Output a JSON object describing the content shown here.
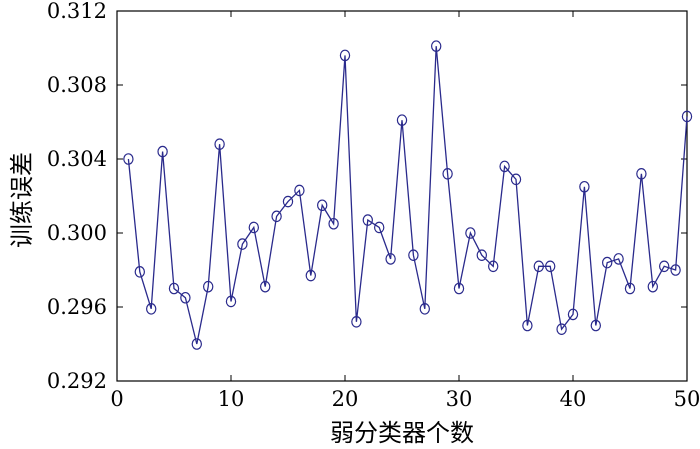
{
  "chart_data": {
    "type": "line",
    "xlabel": "弱分类器个数",
    "ylabel": "训练误差",
    "xlim": [
      0,
      50
    ],
    "ylim": [
      0.292,
      0.312
    ],
    "x_ticks": [
      0,
      10,
      20,
      30,
      40,
      50
    ],
    "x_tick_labels": [
      "0",
      "10",
      "20",
      "30",
      "40",
      "50"
    ],
    "y_ticks": [
      0.292,
      0.296,
      0.3,
      0.304,
      0.308,
      0.312
    ],
    "y_tick_labels": [
      "0.292",
      "0.296",
      "0.300",
      "0.304",
      "0.308",
      "0.312"
    ],
    "grid": false,
    "marker": "circle",
    "line_color": "#2a2a8c",
    "x": [
      1,
      2,
      3,
      4,
      5,
      6,
      7,
      8,
      9,
      10,
      11,
      12,
      13,
      14,
      15,
      16,
      17,
      18,
      19,
      20,
      21,
      22,
      23,
      24,
      25,
      26,
      27,
      28,
      29,
      30,
      31,
      32,
      33,
      34,
      35,
      36,
      37,
      38,
      39,
      40,
      41,
      42,
      43,
      44,
      45,
      46,
      47,
      48,
      49,
      50
    ],
    "values": [
      0.304,
      0.2979,
      0.2959,
      0.3044,
      0.297,
      0.2965,
      0.294,
      0.2971,
      0.3048,
      0.2963,
      0.2994,
      0.3003,
      0.2971,
      0.3009,
      0.3017,
      0.3023,
      0.2977,
      0.3015,
      0.3005,
      0.3096,
      0.2952,
      0.3007,
      0.3003,
      0.2986,
      0.3061,
      0.2988,
      0.2959,
      0.3101,
      0.3032,
      0.297,
      0.3,
      0.2988,
      0.2982,
      0.3036,
      0.3029,
      0.295,
      0.2982,
      0.2982,
      0.2948,
      0.2956,
      0.3025,
      0.295,
      0.2984,
      0.2986,
      0.297,
      0.3032,
      0.2971,
      0.2982,
      0.298,
      0.3063
    ]
  }
}
